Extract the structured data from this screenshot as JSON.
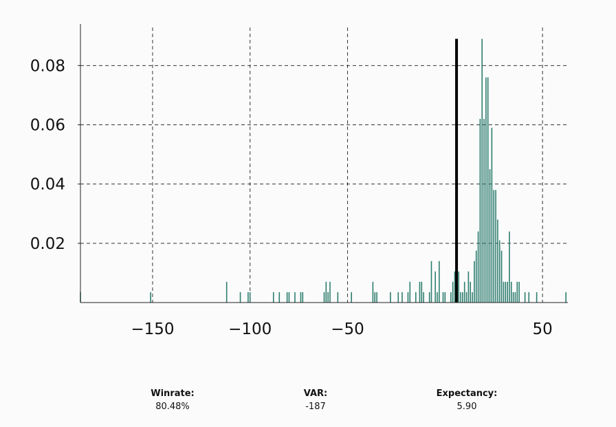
{
  "chart_data": {
    "type": "bar",
    "title": "",
    "xlabel": "",
    "ylabel": "",
    "xlim": [
      -187,
      63
    ],
    "ylim": [
      0,
      0.094
    ],
    "grid": true,
    "bar_color": "#2e7d6e",
    "marker_color": "#000000",
    "x_ticks": [
      -150,
      -100,
      -50,
      50
    ],
    "x_tick_labels": [
      "−150",
      "−100",
      "−50",
      "50"
    ],
    "y_ticks": [
      0.02,
      0.04,
      0.06,
      0.08
    ],
    "y_tick_labels": [
      "0.02",
      "0.04",
      "0.06",
      "0.08"
    ],
    "marker_line": {
      "x": 5.9,
      "height": 0.089
    },
    "bins": [
      {
        "x": -187,
        "y": 0.0035
      },
      {
        "x": -151,
        "y": 0.0035
      },
      {
        "x": -112,
        "y": 0.007
      },
      {
        "x": -105,
        "y": 0.0035
      },
      {
        "x": -101,
        "y": 0.0035
      },
      {
        "x": -100,
        "y": 0.0035
      },
      {
        "x": -88,
        "y": 0.0035
      },
      {
        "x": -85,
        "y": 0.0035
      },
      {
        "x": -81,
        "y": 0.0035
      },
      {
        "x": -80,
        "y": 0.0035
      },
      {
        "x": -77,
        "y": 0.0035
      },
      {
        "x": -74,
        "y": 0.0035
      },
      {
        "x": -73,
        "y": 0.0035
      },
      {
        "x": -62,
        "y": 0.0035
      },
      {
        "x": -61,
        "y": 0.007
      },
      {
        "x": -60,
        "y": 0.0035
      },
      {
        "x": -59,
        "y": 0.007
      },
      {
        "x": -55,
        "y": 0.0035
      },
      {
        "x": -48,
        "y": 0.0035
      },
      {
        "x": -37,
        "y": 0.007
      },
      {
        "x": -36,
        "y": 0.0035
      },
      {
        "x": -35,
        "y": 0.0035
      },
      {
        "x": -28,
        "y": 0.0035
      },
      {
        "x": -24,
        "y": 0.0035
      },
      {
        "x": -22,
        "y": 0.0035
      },
      {
        "x": -19,
        "y": 0.0035
      },
      {
        "x": -18,
        "y": 0.007
      },
      {
        "x": -15,
        "y": 0.0035
      },
      {
        "x": -13,
        "y": 0.007
      },
      {
        "x": -12,
        "y": 0.007
      },
      {
        "x": -11,
        "y": 0.0035
      },
      {
        "x": -8,
        "y": 0.0035
      },
      {
        "x": -7,
        "y": 0.014
      },
      {
        "x": -5,
        "y": 0.0105
      },
      {
        "x": -4,
        "y": 0.0035
      },
      {
        "x": -3,
        "y": 0.014
      },
      {
        "x": -1,
        "y": 0.0035
      },
      {
        "x": 0,
        "y": 0.0035
      },
      {
        "x": 3,
        "y": 0.0035
      },
      {
        "x": 4,
        "y": 0.007
      },
      {
        "x": 5,
        "y": 0.0105
      },
      {
        "x": 6,
        "y": 0.0035
      },
      {
        "x": 7,
        "y": 0.0105
      },
      {
        "x": 8,
        "y": 0.0035
      },
      {
        "x": 9,
        "y": 0.0035
      },
      {
        "x": 10,
        "y": 0.007
      },
      {
        "x": 11,
        "y": 0.0035
      },
      {
        "x": 12,
        "y": 0.0105
      },
      {
        "x": 13,
        "y": 0.007
      },
      {
        "x": 14,
        "y": 0.0035
      },
      {
        "x": 15,
        "y": 0.014
      },
      {
        "x": 16,
        "y": 0.0175
      },
      {
        "x": 17,
        "y": 0.024
      },
      {
        "x": 18,
        "y": 0.062
      },
      {
        "x": 19,
        "y": 0.089
      },
      {
        "x": 20,
        "y": 0.062
      },
      {
        "x": 21,
        "y": 0.076
      },
      {
        "x": 22,
        "y": 0.076
      },
      {
        "x": 23,
        "y": 0.045
      },
      {
        "x": 24,
        "y": 0.059
      },
      {
        "x": 25,
        "y": 0.038
      },
      {
        "x": 26,
        "y": 0.038
      },
      {
        "x": 27,
        "y": 0.028
      },
      {
        "x": 28,
        "y": 0.021
      },
      {
        "x": 29,
        "y": 0.0175
      },
      {
        "x": 30,
        "y": 0.007
      },
      {
        "x": 31,
        "y": 0.007
      },
      {
        "x": 32,
        "y": 0.007
      },
      {
        "x": 33,
        "y": 0.024
      },
      {
        "x": 34,
        "y": 0.007
      },
      {
        "x": 35,
        "y": 0.0035
      },
      {
        "x": 36,
        "y": 0.0035
      },
      {
        "x": 37,
        "y": 0.007
      },
      {
        "x": 38,
        "y": 0.007
      },
      {
        "x": 41,
        "y": 0.0035
      },
      {
        "x": 43,
        "y": 0.0035
      },
      {
        "x": 47,
        "y": 0.0035
      },
      {
        "x": 62,
        "y": 0.0035
      }
    ]
  },
  "stats": {
    "winrate": {
      "label": "Winrate:",
      "value": "80.48%"
    },
    "var": {
      "label": "VAR:",
      "value": "-187"
    },
    "expectancy": {
      "label": "Expectancy:",
      "value": "5.90"
    }
  }
}
